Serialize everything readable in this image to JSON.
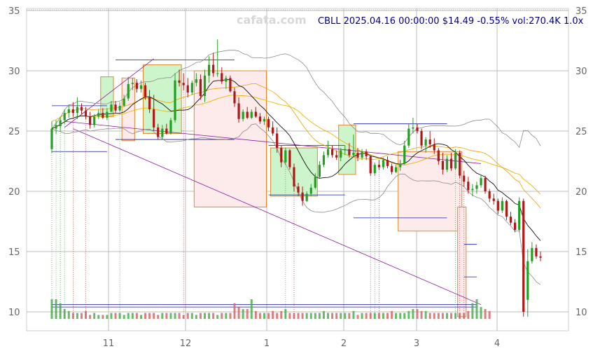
{
  "watermark": "cafata.com",
  "header": "CBLL 2025.04.16 00:00:00 $14.49 -0.55% vol:270.4K 1.0x",
  "colors": {
    "up": "#22a022",
    "down": "#b01818",
    "up_box_fill": "#ccf5cc",
    "down_box_fill": "#fdeaea",
    "box_stroke": "#e08a30",
    "channel": "#8b1a9b",
    "ma_short": "#111111",
    "ma_long": "#f0b400",
    "ma_mid": "#f0a000",
    "bands": "#8c8c8c",
    "level_lines": "#1a1aa0",
    "grid": "#bdbdbd"
  },
  "chart_data": {
    "type": "candlestick",
    "ticker": "CBLL",
    "y_ticks": [
      10,
      15,
      20,
      25,
      30,
      35
    ],
    "x_ticks": [
      "11",
      "12",
      "1",
      "2",
      "3",
      "4"
    ],
    "ylim": [
      9.5,
      35
    ],
    "last_close": 14.49,
    "change_pct": -0.55,
    "volume": "270.4K",
    "candles": [
      {
        "o": 23.5,
        "h": 25.8,
        "l": 23.2,
        "c": 25.2
      },
      {
        "o": 25.2,
        "h": 25.9,
        "l": 24.8,
        "c": 25.5
      },
      {
        "o": 25.4,
        "h": 26.2,
        "l": 25.0,
        "c": 25.9
      },
      {
        "o": 25.9,
        "h": 26.8,
        "l": 25.6,
        "c": 26.5
      },
      {
        "o": 26.5,
        "h": 27.2,
        "l": 26.1,
        "c": 26.8
      },
      {
        "o": 26.8,
        "h": 27.4,
        "l": 26.2,
        "c": 26.5
      },
      {
        "o": 26.5,
        "h": 27.8,
        "l": 26.0,
        "c": 27.0
      },
      {
        "o": 27.0,
        "h": 27.3,
        "l": 26.4,
        "c": 26.7
      },
      {
        "o": 26.7,
        "h": 27.0,
        "l": 26.0,
        "c": 26.2
      },
      {
        "o": 26.2,
        "h": 26.6,
        "l": 25.2,
        "c": 25.5
      },
      {
        "o": 25.5,
        "h": 26.4,
        "l": 25.3,
        "c": 26.2
      },
      {
        "o": 26.2,
        "h": 26.8,
        "l": 26.0,
        "c": 26.5
      },
      {
        "o": 26.5,
        "h": 26.9,
        "l": 26.0,
        "c": 26.1
      },
      {
        "o": 26.1,
        "h": 26.9,
        "l": 25.9,
        "c": 26.6
      },
      {
        "o": 26.6,
        "h": 27.5,
        "l": 26.6,
        "c": 27.2
      },
      {
        "o": 27.2,
        "h": 27.5,
        "l": 26.5,
        "c": 26.7
      },
      {
        "o": 26.7,
        "h": 27.4,
        "l": 26.6,
        "c": 27.1
      },
      {
        "o": 27.1,
        "h": 28.0,
        "l": 27.0,
        "c": 27.7
      },
      {
        "o": 27.7,
        "h": 29.5,
        "l": 27.5,
        "c": 28.9
      },
      {
        "o": 28.9,
        "h": 29.4,
        "l": 28.4,
        "c": 29.0
      },
      {
        "o": 29.0,
        "h": 29.3,
        "l": 28.2,
        "c": 28.5
      },
      {
        "o": 28.5,
        "h": 29.2,
        "l": 28.2,
        "c": 28.8
      },
      {
        "o": 28.8,
        "h": 29.0,
        "l": 27.6,
        "c": 27.8
      },
      {
        "o": 27.8,
        "h": 28.4,
        "l": 26.5,
        "c": 26.8
      },
      {
        "o": 26.8,
        "h": 28.0,
        "l": 25.0,
        "c": 25.3
      },
      {
        "o": 25.3,
        "h": 25.6,
        "l": 24.3,
        "c": 24.5
      },
      {
        "o": 24.5,
        "h": 25.5,
        "l": 24.3,
        "c": 25.2
      },
      {
        "o": 25.2,
        "h": 25.6,
        "l": 24.7,
        "c": 24.8
      },
      {
        "o": 24.8,
        "h": 26.1,
        "l": 24.7,
        "c": 25.9
      },
      {
        "o": 25.9,
        "h": 29.8,
        "l": 25.7,
        "c": 29.2
      },
      {
        "o": 29.2,
        "h": 30.1,
        "l": 28.7,
        "c": 29.0
      },
      {
        "o": 29.0,
        "h": 29.8,
        "l": 28.4,
        "c": 28.8
      },
      {
        "o": 28.8,
        "h": 29.4,
        "l": 27.8,
        "c": 28.2
      },
      {
        "o": 28.2,
        "h": 29.2,
        "l": 28.0,
        "c": 29.0
      },
      {
        "o": 29.0,
        "h": 29.8,
        "l": 28.7,
        "c": 29.3
      },
      {
        "o": 29.3,
        "h": 29.7,
        "l": 27.6,
        "c": 27.9
      },
      {
        "o": 27.9,
        "h": 30.1,
        "l": 27.4,
        "c": 29.6
      },
      {
        "o": 29.6,
        "h": 31.2,
        "l": 29.0,
        "c": 30.5
      },
      {
        "o": 30.5,
        "h": 31.5,
        "l": 29.5,
        "c": 29.8
      },
      {
        "o": 29.8,
        "h": 32.6,
        "l": 29.5,
        "c": 29.8
      },
      {
        "o": 29.8,
        "h": 30.3,
        "l": 28.9,
        "c": 29.1
      },
      {
        "o": 29.1,
        "h": 29.6,
        "l": 28.5,
        "c": 29.4
      },
      {
        "o": 29.4,
        "h": 29.6,
        "l": 28.2,
        "c": 28.3
      },
      {
        "o": 28.3,
        "h": 28.6,
        "l": 27.0,
        "c": 27.3
      },
      {
        "o": 27.3,
        "h": 27.8,
        "l": 25.7,
        "c": 26.0
      },
      {
        "o": 26.0,
        "h": 26.8,
        "l": 25.8,
        "c": 26.6
      },
      {
        "o": 26.6,
        "h": 27.0,
        "l": 26.0,
        "c": 26.1
      },
      {
        "o": 26.1,
        "h": 26.8,
        "l": 26.0,
        "c": 26.6
      },
      {
        "o": 26.6,
        "h": 27.0,
        "l": 26.1,
        "c": 26.2
      },
      {
        "o": 26.2,
        "h": 26.5,
        "l": 25.6,
        "c": 25.8
      },
      {
        "o": 25.8,
        "h": 26.2,
        "l": 25.5,
        "c": 26.0
      },
      {
        "o": 26.0,
        "h": 26.2,
        "l": 25.0,
        "c": 25.3
      },
      {
        "o": 25.3,
        "h": 25.8,
        "l": 24.6,
        "c": 24.8
      },
      {
        "o": 24.8,
        "h": 25.3,
        "l": 23.2,
        "c": 23.6
      },
      {
        "o": 23.6,
        "h": 23.8,
        "l": 22.0,
        "c": 22.4
      },
      {
        "o": 22.4,
        "h": 23.6,
        "l": 22.2,
        "c": 23.4
      },
      {
        "o": 23.4,
        "h": 23.5,
        "l": 21.8,
        "c": 22.0
      },
      {
        "o": 22.0,
        "h": 22.3,
        "l": 20.0,
        "c": 20.4
      },
      {
        "o": 20.4,
        "h": 20.7,
        "l": 19.6,
        "c": 19.9
      },
      {
        "o": 19.9,
        "h": 20.4,
        "l": 18.8,
        "c": 19.2
      },
      {
        "o": 19.2,
        "h": 20.0,
        "l": 19.1,
        "c": 19.8
      },
      {
        "o": 19.8,
        "h": 20.6,
        "l": 19.6,
        "c": 20.3
      },
      {
        "o": 20.3,
        "h": 21.5,
        "l": 20.2,
        "c": 21.2
      },
      {
        "o": 21.2,
        "h": 22.5,
        "l": 21.1,
        "c": 22.2
      },
      {
        "o": 22.2,
        "h": 23.3,
        "l": 22.0,
        "c": 23.0
      },
      {
        "o": 23.0,
        "h": 24.2,
        "l": 22.8,
        "c": 23.5
      },
      {
        "o": 23.5,
        "h": 23.8,
        "l": 22.8,
        "c": 23.0
      },
      {
        "o": 23.0,
        "h": 23.4,
        "l": 22.6,
        "c": 22.8
      },
      {
        "o": 22.8,
        "h": 23.6,
        "l": 22.5,
        "c": 23.4
      },
      {
        "o": 23.4,
        "h": 23.8,
        "l": 23.0,
        "c": 23.5
      },
      {
        "o": 23.5,
        "h": 24.0,
        "l": 22.8,
        "c": 23.0
      },
      {
        "o": 23.0,
        "h": 24.7,
        "l": 22.9,
        "c": 23.2
      },
      {
        "o": 23.2,
        "h": 23.6,
        "l": 22.5,
        "c": 22.8
      },
      {
        "o": 22.8,
        "h": 23.5,
        "l": 22.6,
        "c": 23.3
      },
      {
        "o": 23.3,
        "h": 23.5,
        "l": 22.6,
        "c": 22.9
      },
      {
        "o": 22.9,
        "h": 23.0,
        "l": 21.3,
        "c": 21.5
      },
      {
        "o": 21.5,
        "h": 22.4,
        "l": 21.3,
        "c": 22.2
      },
      {
        "o": 22.2,
        "h": 22.6,
        "l": 21.8,
        "c": 22.0
      },
      {
        "o": 22.0,
        "h": 22.8,
        "l": 21.8,
        "c": 22.6
      },
      {
        "o": 22.6,
        "h": 22.9,
        "l": 21.9,
        "c": 22.1
      },
      {
        "o": 22.1,
        "h": 22.3,
        "l": 21.4,
        "c": 21.6
      },
      {
        "o": 21.6,
        "h": 22.2,
        "l": 21.5,
        "c": 22.0
      },
      {
        "o": 22.0,
        "h": 22.6,
        "l": 21.7,
        "c": 22.3
      },
      {
        "o": 22.3,
        "h": 24.2,
        "l": 22.2,
        "c": 23.8
      },
      {
        "o": 23.8,
        "h": 25.6,
        "l": 23.6,
        "c": 25.2
      },
      {
        "o": 25.2,
        "h": 26.1,
        "l": 24.8,
        "c": 25.3
      },
      {
        "o": 25.3,
        "h": 25.6,
        "l": 24.8,
        "c": 25.0
      },
      {
        "o": 25.0,
        "h": 25.2,
        "l": 23.5,
        "c": 23.8
      },
      {
        "o": 23.8,
        "h": 24.5,
        "l": 23.2,
        "c": 24.3
      },
      {
        "o": 24.3,
        "h": 25.0,
        "l": 23.6,
        "c": 23.9
      },
      {
        "o": 23.9,
        "h": 24.4,
        "l": 23.1,
        "c": 23.4
      },
      {
        "o": 23.4,
        "h": 23.6,
        "l": 22.2,
        "c": 22.5
      },
      {
        "o": 22.5,
        "h": 23.2,
        "l": 21.4,
        "c": 21.8
      },
      {
        "o": 21.8,
        "h": 23.0,
        "l": 21.6,
        "c": 22.7
      },
      {
        "o": 22.7,
        "h": 23.2,
        "l": 21.7,
        "c": 21.9
      },
      {
        "o": 21.9,
        "h": 23.5,
        "l": 21.8,
        "c": 23.2
      },
      {
        "o": 23.2,
        "h": 23.4,
        "l": 21.1,
        "c": 21.3
      },
      {
        "o": 21.3,
        "h": 21.7,
        "l": 20.4,
        "c": 20.8
      },
      {
        "o": 20.8,
        "h": 21.2,
        "l": 19.8,
        "c": 20.1
      },
      {
        "o": 20.1,
        "h": 20.6,
        "l": 19.6,
        "c": 20.2
      },
      {
        "o": 20.2,
        "h": 20.8,
        "l": 19.8,
        "c": 20.5
      },
      {
        "o": 20.5,
        "h": 21.4,
        "l": 20.3,
        "c": 21.1
      },
      {
        "o": 21.1,
        "h": 21.3,
        "l": 19.8,
        "c": 20.0
      },
      {
        "o": 20.0,
        "h": 20.2,
        "l": 19.1,
        "c": 19.4
      },
      {
        "o": 19.4,
        "h": 19.8,
        "l": 18.9,
        "c": 19.2
      },
      {
        "o": 19.2,
        "h": 19.4,
        "l": 18.1,
        "c": 18.4
      },
      {
        "o": 18.4,
        "h": 19.5,
        "l": 18.2,
        "c": 19.2
      },
      {
        "o": 19.2,
        "h": 19.3,
        "l": 17.6,
        "c": 17.9
      },
      {
        "o": 17.9,
        "h": 18.3,
        "l": 17.2,
        "c": 17.4
      },
      {
        "o": 17.4,
        "h": 17.7,
        "l": 16.6,
        "c": 16.8
      },
      {
        "o": 16.8,
        "h": 19.5,
        "l": 16.6,
        "c": 19.2
      },
      {
        "o": 19.2,
        "h": 19.4,
        "l": 9.6,
        "c": 10.0
      },
      {
        "o": 11.0,
        "h": 15.2,
        "l": 9.6,
        "c": 14.2
      },
      {
        "o": 14.2,
        "h": 15.8,
        "l": 14.0,
        "c": 15.3
      },
      {
        "o": 15.3,
        "h": 15.6,
        "l": 14.4,
        "c": 14.6
      },
      {
        "o": 14.6,
        "h": 15.0,
        "l": 14.2,
        "c": 14.49
      }
    ],
    "boxes": [
      {
        "t0": 12,
        "t1": 14,
        "y0": 26.2,
        "y1": 29.5,
        "dir": "up"
      },
      {
        "t0": 17,
        "t1": 19,
        "y0": 24.2,
        "y1": 29.4,
        "dir": "down"
      },
      {
        "t0": 22,
        "t1": 30,
        "y0": 24.8,
        "y1": 30.5,
        "dir": "up"
      },
      {
        "t0": 34,
        "t1": 50,
        "y0": 18.7,
        "y1": 30.0,
        "dir": "down"
      },
      {
        "t0": 52,
        "t1": 62,
        "y0": 19.6,
        "y1": 23.6,
        "dir": "up"
      },
      {
        "t0": 68,
        "t1": 71,
        "y0": 21.4,
        "y1": 25.5,
        "dir": "up"
      },
      {
        "t0": 82,
        "t1": 96,
        "y0": 16.7,
        "y1": 23.3,
        "dir": "down"
      },
      {
        "t0": 96,
        "t1": 97,
        "y0": 9.6,
        "y1": 18.7,
        "dir": "down"
      }
    ],
    "channel_lines": [
      {
        "t0": 3,
        "v0": 25.8,
        "t1": 101,
        "v1": 22.3
      },
      {
        "t0": 5,
        "v0": 25.2,
        "t1": 101,
        "v1": 10.6
      },
      {
        "t0": 3,
        "v0": 25.3,
        "t1": 24,
        "v1": 31.0
      }
    ],
    "levels": [
      {
        "t0": 0,
        "t1": 13,
        "v": 27.1
      },
      {
        "t0": 0,
        "t1": 13,
        "v": 23.3
      },
      {
        "t0": 15,
        "t1": 43,
        "v": 30.9
      },
      {
        "t0": 15,
        "t1": 43,
        "v": 24.3
      },
      {
        "t0": 51,
        "t1": 69,
        "v": 23.8
      },
      {
        "t0": 51,
        "t1": 69,
        "v": 19.7
      },
      {
        "t0": 71,
        "t1": 93,
        "v": 25.6
      },
      {
        "t0": 71,
        "t1": 93,
        "v": 17.8
      },
      {
        "t0": 97,
        "t1": 100,
        "v": 15.6
      },
      {
        "t0": 97,
        "t1": 100,
        "v": 12.9
      },
      {
        "t0": 0,
        "t1": 100,
        "v": 10.6
      },
      {
        "t0": 0,
        "t1": 100,
        "v": 10.4
      }
    ],
    "volumes": [
      1.0,
      1.0,
      0.8,
      0.5,
      0.4,
      0.3,
      0.3,
      0.3,
      0.4,
      0.2,
      0.3,
      0.2,
      0.2,
      0.2,
      0.3,
      0.3,
      0.3,
      0.2,
      0.3,
      0.3,
      0.3,
      0.2,
      0.3,
      0.3,
      0.3,
      0.2,
      0.3,
      0.3,
      0.3,
      0.3,
      0.3,
      0.2,
      0.3,
      0.3,
      0.2,
      0.3,
      0.3,
      0.3,
      0.3,
      0.2,
      0.3,
      0.3,
      0.3,
      0.8,
      0.6,
      0.5,
      0.5,
      1.0,
      0.4,
      0.3,
      0.3,
      0.3,
      0.4,
      0.3,
      0.4,
      0.5,
      0.3,
      0.3,
      0.3,
      0.3,
      0.3,
      0.3,
      0.3,
      0.3,
      0.4,
      0.3,
      0.3,
      0.3,
      0.3,
      0.3,
      0.3,
      0.4,
      0.2,
      0.3,
      0.3,
      0.3,
      0.3,
      0.3,
      0.3,
      0.3,
      0.4,
      0.3,
      0.3,
      0.3,
      0.4,
      0.5,
      0.5,
      0.4,
      0.4,
      0.3,
      0.3,
      0.3,
      0.3,
      0.3,
      0.3,
      0.3,
      0.3,
      0.3,
      0.4,
      0.8,
      1.0,
      0.6,
      0.5,
      0.4
    ],
    "vertical_markers": [
      0,
      1,
      2,
      3,
      5,
      8,
      16,
      31,
      55,
      57,
      75,
      76,
      77,
      95,
      96,
      97
    ]
  }
}
